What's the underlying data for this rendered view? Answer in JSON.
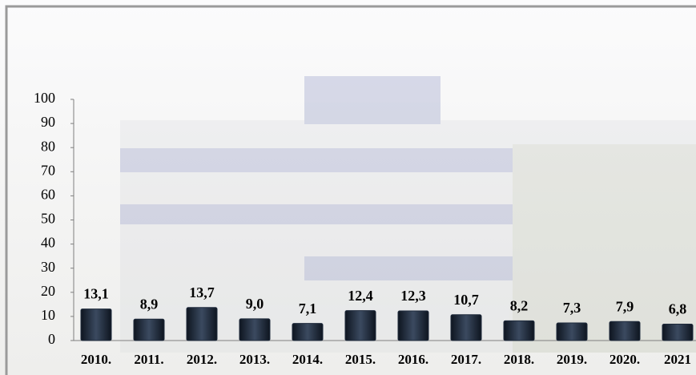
{
  "chart_data": {
    "type": "bar",
    "categories": [
      "2010.",
      "2011.",
      "2012.",
      "2013.",
      "2014.",
      "2015.",
      "2016.",
      "2017.",
      "2018.",
      "2019.",
      "2020.",
      "2021"
    ],
    "values": [
      13.1,
      8.9,
      13.7,
      9.0,
      7.1,
      12.4,
      12.3,
      10.7,
      8.2,
      7.3,
      7.9,
      6.8
    ],
    "value_labels": [
      "13,1",
      "8,9",
      "13,7",
      "9,0",
      "7,1",
      "12,4",
      "12,3",
      "10,7",
      "8,2",
      "7,3",
      "7,9",
      "6,8"
    ],
    "color": "#1f2b3c",
    "ylim": [
      0,
      100
    ],
    "yticks": [
      0,
      10,
      20,
      30,
      40,
      50,
      60,
      70,
      80,
      90,
      100
    ]
  }
}
